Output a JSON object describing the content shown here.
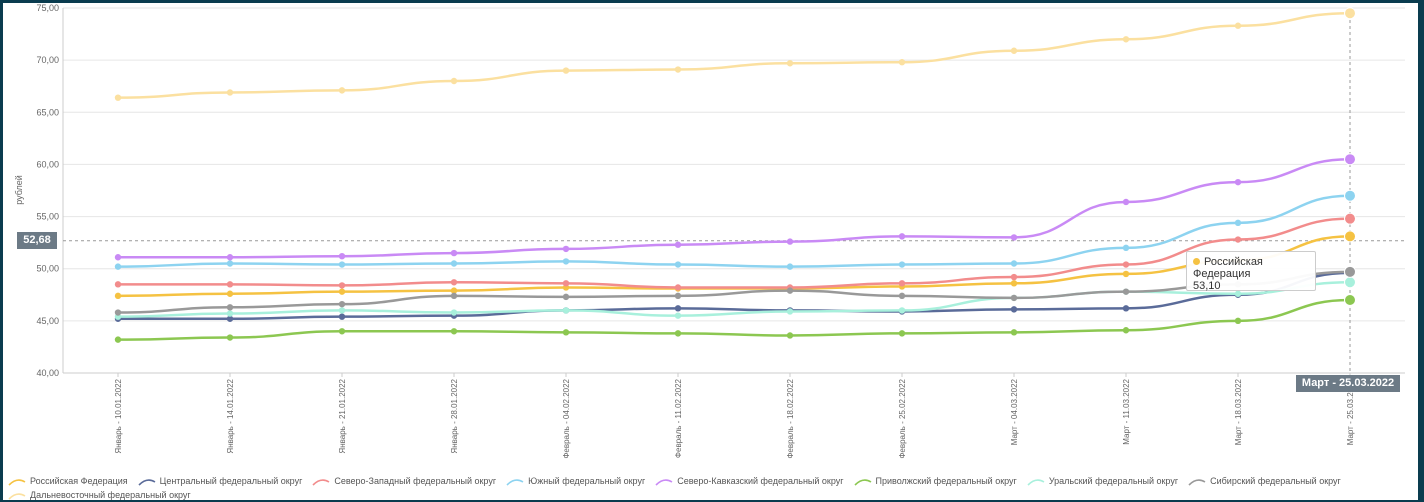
{
  "chart_data": {
    "type": "line",
    "ylabel": "рублей",
    "ylim": [
      40,
      75
    ],
    "yticks": [
      "40,00",
      "45,00",
      "50,00",
      "55,00",
      "60,00",
      "65,00",
      "70,00",
      "75,00"
    ],
    "categories": [
      "Январь - 10.01.2022",
      "Январь - 14.01.2022",
      "Январь - 21.01.2022",
      "Январь - 28.01.2022",
      "Февраль - 04.02.2022",
      "Февраль - 11.02.2022",
      "Февраль - 18.02.2022",
      "Февраль - 25.02.2022",
      "Март - 04.03.2022",
      "Март - 11.03.2022",
      "Март - 18.03.2022",
      "Март - 25.03.2022"
    ],
    "series": [
      {
        "name": "Российская Федерация",
        "color": "#f5c242",
        "values": [
          47.4,
          47.6,
          47.8,
          47.9,
          48.2,
          48.1,
          48.1,
          48.3,
          48.6,
          49.5,
          50.8,
          53.1
        ]
      },
      {
        "name": "Центральный федеральный округ",
        "color": "#5a6b99",
        "values": [
          45.2,
          45.2,
          45.4,
          45.5,
          46.0,
          46.2,
          46.0,
          45.9,
          46.1,
          46.2,
          47.5,
          49.6
        ]
      },
      {
        "name": "Северо-Западный федеральный округ",
        "color": "#f28c8c",
        "values": [
          48.5,
          48.5,
          48.4,
          48.7,
          48.6,
          48.2,
          48.2,
          48.6,
          49.2,
          50.4,
          52.8,
          54.8
        ]
      },
      {
        "name": "Южный федеральный округ",
        "color": "#8dd3f0",
        "values": [
          50.2,
          50.5,
          50.4,
          50.5,
          50.7,
          50.4,
          50.2,
          50.4,
          50.5,
          52.0,
          54.4,
          57.0
        ]
      },
      {
        "name": "Северо-Кавказский федеральный округ",
        "color": "#c98af5",
        "values": [
          51.1,
          51.1,
          51.2,
          51.5,
          51.9,
          52.3,
          52.6,
          53.1,
          53.0,
          56.4,
          58.3,
          60.5
        ]
      },
      {
        "name": "Приволжский федеральный округ",
        "color": "#8cc751",
        "values": [
          43.2,
          43.4,
          44.0,
          44.0,
          43.9,
          43.8,
          43.6,
          43.8,
          43.9,
          44.1,
          45.0,
          47.0
        ]
      },
      {
        "name": "Уральский федеральный округ",
        "color": "#a8f0dc",
        "values": [
          45.4,
          45.7,
          46.0,
          45.8,
          46.0,
          45.5,
          45.9,
          46.0,
          47.2,
          47.8,
          47.6,
          48.7
        ]
      },
      {
        "name": "Сибирский федеральный округ",
        "color": "#999999",
        "values": [
          45.8,
          46.3,
          46.6,
          47.4,
          47.3,
          47.4,
          47.9,
          47.4,
          47.2,
          47.8,
          48.5,
          49.7
        ]
      },
      {
        "name": "Дальневосточный федеральный округ",
        "color": "#fbe0a0",
        "values": [
          66.4,
          66.9,
          67.1,
          68.0,
          69.0,
          69.1,
          69.7,
          69.8,
          70.9,
          72.0,
          73.3,
          74.5
        ]
      }
    ],
    "crosshair": {
      "y_label": "52,68",
      "x_label": "Март - 25.03.2022"
    },
    "tooltip": {
      "series": "Российская Федерация",
      "value": "53,10"
    },
    "grid": true,
    "legend": "bottom"
  }
}
